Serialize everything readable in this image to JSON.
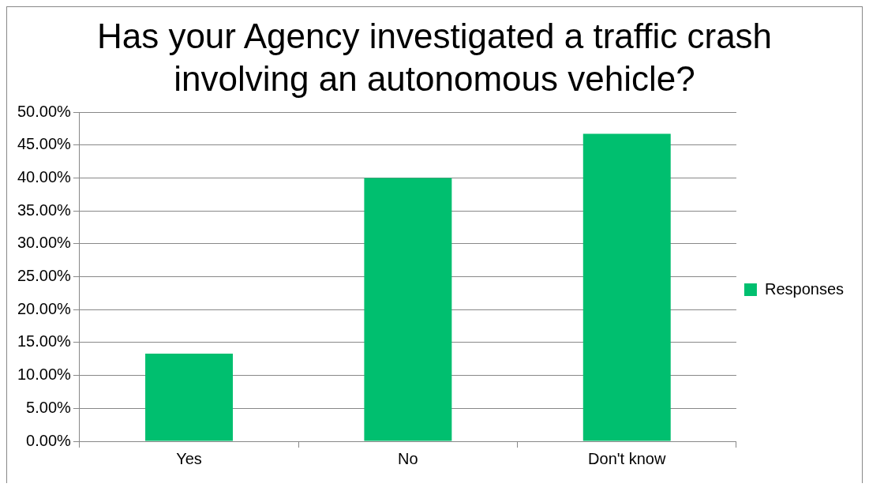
{
  "chart_data": {
    "type": "bar",
    "title": "Has your Agency investigated a traffic crash involving an autonomous vehicle?",
    "categories": [
      "Yes",
      "No",
      "Don't know"
    ],
    "series": [
      {
        "name": "Responses",
        "color": "#00bf6f",
        "values": [
          13.3,
          40,
          46.7
        ]
      }
    ],
    "ylim": [
      0,
      50
    ],
    "yticks": [
      {
        "value": 0,
        "label": "0.00%"
      },
      {
        "value": 5,
        "label": "5.00%"
      },
      {
        "value": 10,
        "label": "10.00%"
      },
      {
        "value": 15,
        "label": "15.00%"
      },
      {
        "value": 20,
        "label": "20.00%"
      },
      {
        "value": 25,
        "label": "25.00%"
      },
      {
        "value": 30,
        "label": "30.00%"
      },
      {
        "value": 35,
        "label": "35.00%"
      },
      {
        "value": 40,
        "label": "40.00%"
      },
      {
        "value": 45,
        "label": "45.00%"
      },
      {
        "value": 50,
        "label": "50.00%"
      }
    ],
    "grid": "y",
    "legend": "right"
  }
}
